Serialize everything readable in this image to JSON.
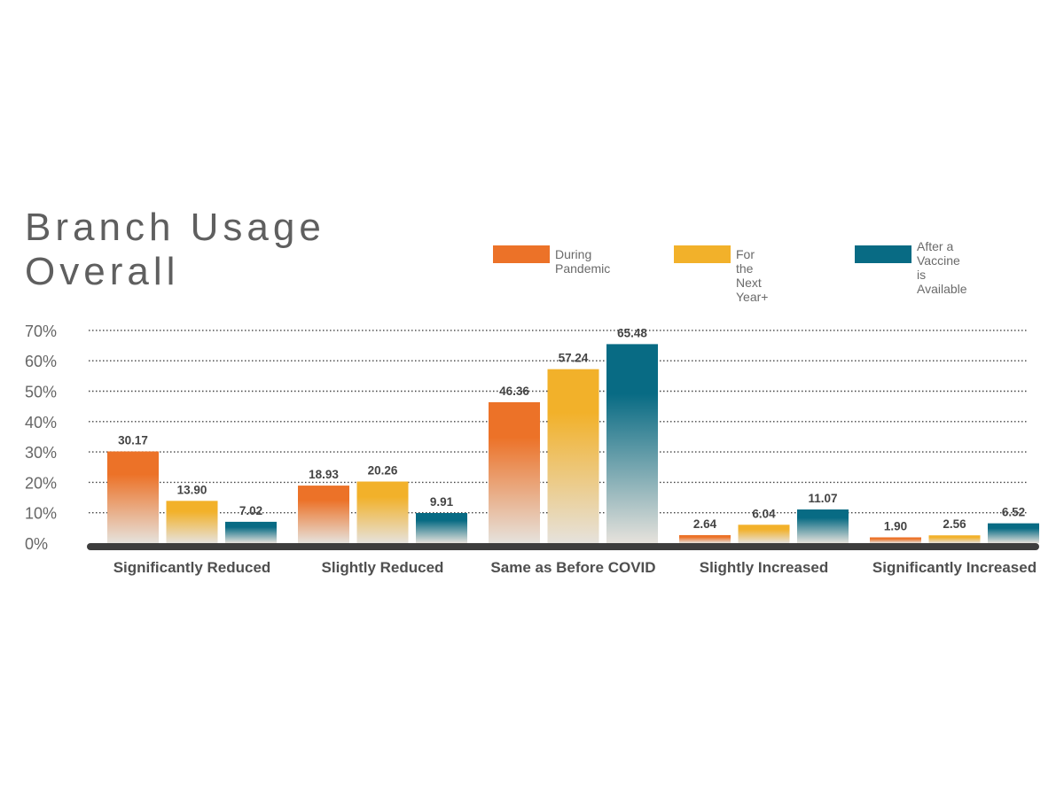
{
  "chart_data": {
    "type": "bar",
    "title_lines": [
      "Branch Usage",
      "Overall"
    ],
    "categories": [
      "Significantly Reduced",
      "Slightly Reduced",
      "Same as Before COVID",
      "Slightly Increased",
      "Significantly Increased"
    ],
    "series": [
      {
        "name": "During Pandemic",
        "color": "#ec7228",
        "values": [
          30.17,
          18.93,
          46.36,
          2.64,
          1.9
        ],
        "labels": [
          "30.17",
          "18.93",
          "46.36",
          "2.64",
          "1.90"
        ]
      },
      {
        "name": "For the Next Year+",
        "color": "#f2b12a",
        "values": [
          13.9,
          20.26,
          57.24,
          6.04,
          2.56
        ],
        "labels": [
          "13.90",
          "20.26",
          "57.24",
          "6.04",
          "2.56"
        ]
      },
      {
        "name": "After a Vaccine\nis Available",
        "color": "#086b84",
        "values": [
          7.02,
          9.91,
          65.48,
          11.07,
          6.52
        ],
        "labels": [
          "7.02",
          "9.91",
          "65.48",
          "11.07",
          "6.52"
        ]
      }
    ],
    "yticks": [
      "0%",
      "10%",
      "20%",
      "30%",
      "40%",
      "50%",
      "60%",
      "70%"
    ],
    "ylim": [
      0,
      70
    ],
    "grid": true,
    "legend_position": "top-right"
  }
}
